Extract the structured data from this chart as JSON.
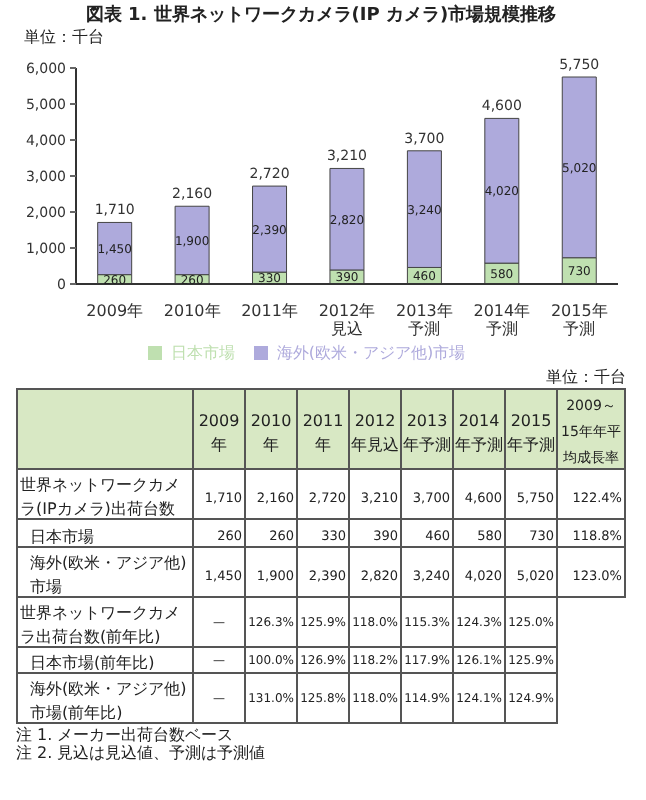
{
  "chart_data": {
    "type": "bar",
    "title": "図表 1. 世界ネットワークカメラ(IP カメラ)市場規模推移",
    "categories": [
      "2009年",
      "2010年",
      "2011年",
      "2012年見込",
      "2013年予測",
      "2014年予測",
      "2015年予測"
    ],
    "stacked": true,
    "series": [
      {
        "name": "日本市場",
        "color": "#bfe0b0",
        "values": [
          260,
          260,
          330,
          390,
          460,
          580,
          730
        ],
        "value_labels": [
          "260",
          "260",
          "330",
          "390",
          "460",
          "580",
          "730"
        ]
      },
      {
        "name": "海外(欧米・アジア他)市場",
        "color": "#aeaadc",
        "values": [
          1450,
          1900,
          2390,
          2820,
          3240,
          4020,
          5020
        ],
        "value_labels": [
          "1,450",
          "1,900",
          "2,390",
          "2,820",
          "3,240",
          "4,020",
          "5,020"
        ]
      }
    ],
    "totals": [
      "1,710",
      "2,160",
      "2,720",
      "3,210",
      "3,700",
      "4,600",
      "5,750"
    ],
    "ylim": [
      0,
      6000
    ],
    "yticks": [
      0,
      {
        "value": 1000,
        "label": "1,000"
      },
      {
        "value": 2000,
        "label": "2,000"
      },
      {
        "value": 3000,
        "label": "3,000"
      },
      {
        "value": 4000,
        "label": "4,000"
      },
      {
        "value": 5000,
        "label": "5,000"
      },
      {
        "value": 6000,
        "label": "6,000"
      }
    ],
    "grid": false,
    "legend": "bottom",
    "annotations": [
      "単位：千台",
      "単位：千台",
      "世界ネットワークカメラ(IPカメラ)出荷台数",
      "2009～15年年平均成長率",
      "122.4%",
      "118.8%",
      "123.0%",
      "世界ネットワークカメラ出荷台数(前年比)",
      "—",
      "126.3%",
      "125.9%",
      "118.0%",
      "115.3%",
      "124.3%",
      "125.0%",
      "日本市場(前年比)",
      "—",
      "100.0%",
      "126.9%",
      "118.2%",
      "117.9%",
      "126.1%",
      "125.9%",
      "海外(欧米・アジア他)市場(前年比)",
      "—",
      "131.0%",
      "125.8%",
      "118.0%",
      "114.9%",
      "124.1%",
      "124.9%",
      "注 1. メーカー出荷台数ベース",
      "注 2. 見込は見込値、予測は予測値"
    ]
  }
}
